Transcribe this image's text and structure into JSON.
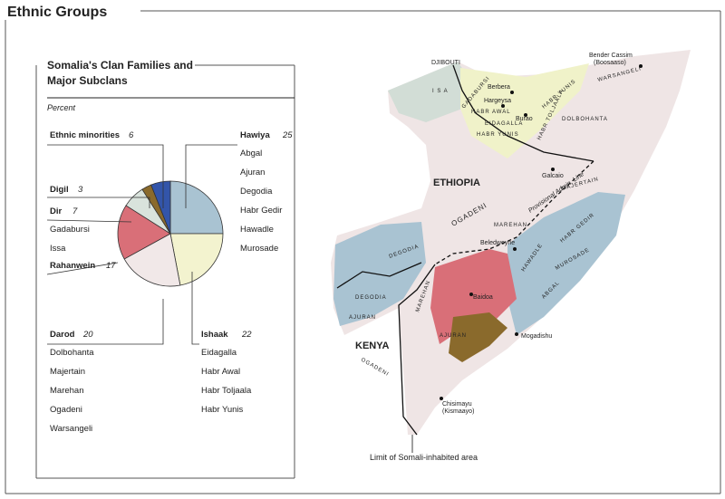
{
  "header": {
    "title": "Ethnic Groups"
  },
  "panel": {
    "title_line1": "Somalia's Clan Families and",
    "title_line2": "Major Subclans",
    "subtitle": "Percent"
  },
  "chart_data": {
    "type": "pie",
    "categories": [
      "Hawiya",
      "Ishaak",
      "Darod",
      "Rahanwein",
      "Dir",
      "Digil",
      "Ethnic minorities"
    ],
    "values": [
      25,
      22,
      20,
      17,
      7,
      3,
      6
    ],
    "colors": [
      "#a9c3d2",
      "#f3f3cf",
      "#f1e8e8",
      "#d96f78",
      "#d9e3dc",
      "#8a6a2c",
      "#3355aa"
    ],
    "subclans": [
      [
        "Abgal",
        "Ajuran",
        "Degodia",
        "Habr Gedir",
        "Hawadle",
        "Murosade"
      ],
      [
        "Eidagalla",
        "Habr Awal",
        "Habr Toljaala",
        "Habr Yunis"
      ],
      [
        "Dolbohanta",
        "Majertain",
        "Marehan",
        "Ogadeni",
        "Warsangeli"
      ],
      [],
      [
        "Gadabursi",
        "Issa"
      ],
      [],
      []
    ]
  },
  "map": {
    "labels": [
      "DJIBOUTI",
      "I S A",
      "GADABURSI",
      "HABR AWAL",
      "EIDAGALLA",
      "HABR YUNIS",
      "Berbera",
      "Hargeysa",
      "Burao",
      "HABR TOLJAALA",
      "HABR YUNIS",
      "DOLBOHANTA",
      "WARSANGELI",
      "Bender Cassim",
      "(Boosaaso)",
      "ETHIOPIA",
      "OGADENI",
      "MAJERTAIN",
      "Provisional Admin. Line",
      "MAREHAN",
      "HABR GEDIR",
      "Galcaio",
      "HAWADLE",
      "Beledweyne",
      "MUROSADE",
      "ABGAL",
      "DEGODIA",
      "DEGODIA",
      "AJURAN",
      "MAREHAN",
      "Baidoa",
      "KENYA",
      "Mogadishu",
      "OGADENI",
      "AJURAN",
      "Chisimayu",
      "(Kismaayo)",
      "Limit of Somali-inhabited area"
    ]
  }
}
